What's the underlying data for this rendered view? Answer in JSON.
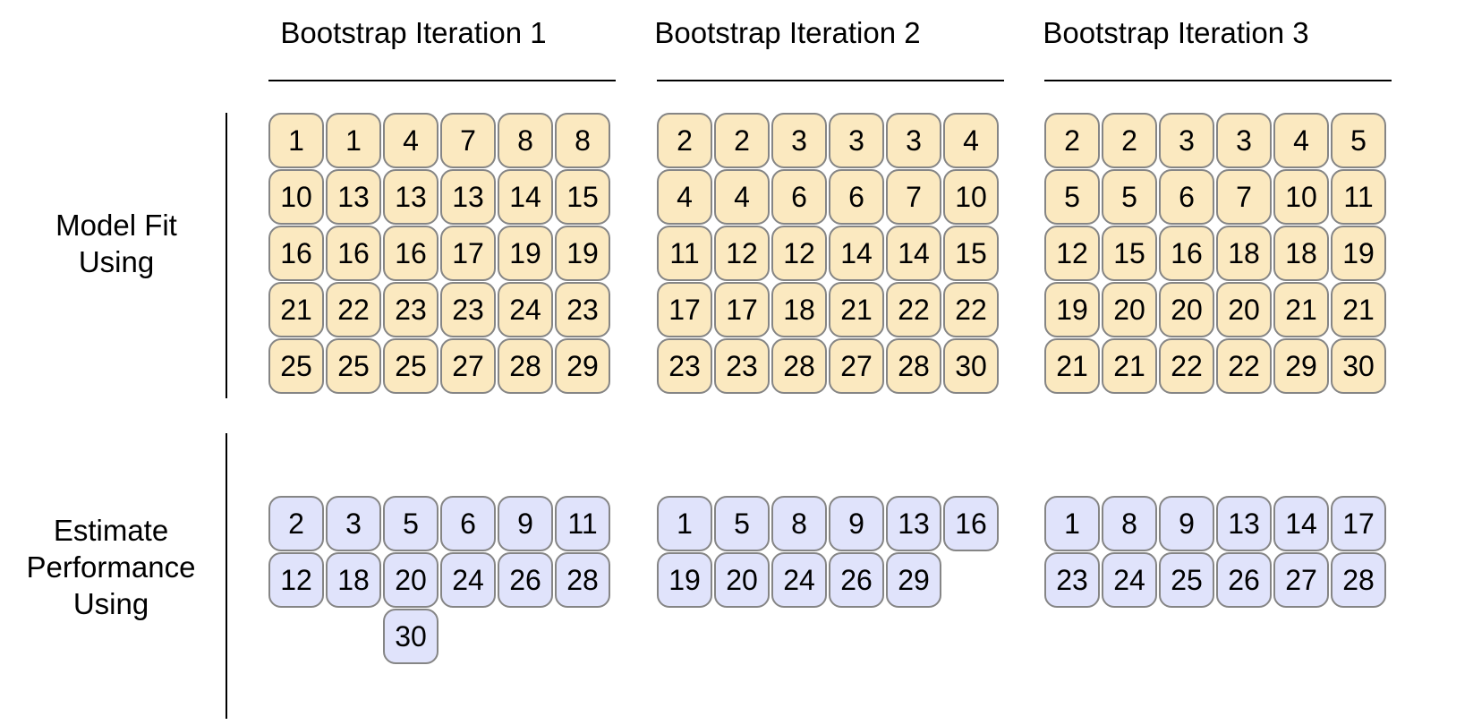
{
  "colors": {
    "fit_cell_fill": "#fbe9c0",
    "estimate_cell_fill": "#e0e3fb",
    "cell_border": "#858585"
  },
  "row_labels": {
    "model_fit": [
      "Model Fit",
      "Using"
    ],
    "estimate": [
      "Estimate",
      "Performance",
      "Using"
    ]
  },
  "iterations": [
    {
      "title": "Bootstrap Iteration 1",
      "fit": [
        "1",
        "1",
        "4",
        "7",
        "8",
        "8",
        "10",
        "13",
        "13",
        "13",
        "14",
        "15",
        "16",
        "16",
        "16",
        "17",
        "19",
        "19",
        "21",
        "22",
        "23",
        "23",
        "24",
        "23",
        "25",
        "25",
        "25",
        "27",
        "28",
        "29"
      ],
      "estimate": [
        "2",
        "3",
        "5",
        "6",
        "9",
        "11",
        "12",
        "18",
        "20",
        "24",
        "26",
        "28",
        null,
        null,
        "30"
      ]
    },
    {
      "title": "Bootstrap Iteration 2",
      "fit": [
        "2",
        "2",
        "3",
        "3",
        "3",
        "4",
        "4",
        "4",
        "6",
        "6",
        "7",
        "10",
        "11",
        "12",
        "12",
        "14",
        "14",
        "15",
        "17",
        "17",
        "18",
        "21",
        "22",
        "22",
        "23",
        "23",
        "28",
        "27",
        "28",
        "30"
      ],
      "estimate": [
        "1",
        "5",
        "8",
        "9",
        "13",
        "16",
        "19",
        "20",
        "24",
        "26",
        "29"
      ]
    },
    {
      "title": "Bootstrap Iteration 3",
      "fit": [
        "2",
        "2",
        "3",
        "3",
        "4",
        "5",
        "5",
        "5",
        "6",
        "7",
        "10",
        "11",
        "12",
        "15",
        "16",
        "18",
        "18",
        "19",
        "19",
        "20",
        "20",
        "20",
        "21",
        "21",
        "21",
        "21",
        "22",
        "22",
        "29",
        "30"
      ],
      "estimate": [
        "1",
        "8",
        "9",
        "13",
        "14",
        "17",
        "23",
        "24",
        "25",
        "26",
        "27",
        "28"
      ]
    }
  ]
}
